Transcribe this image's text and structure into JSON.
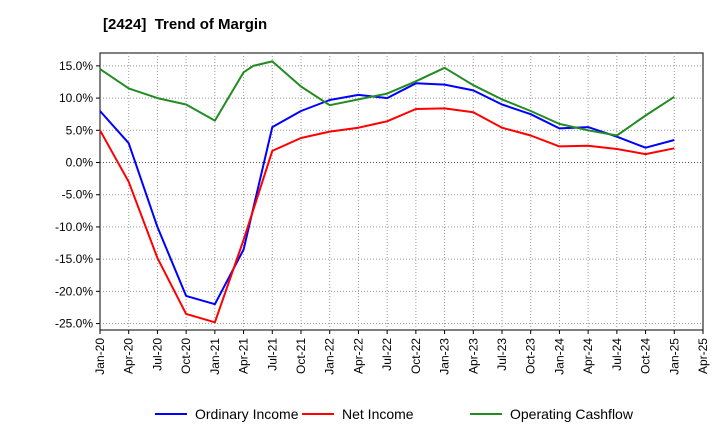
{
  "title": "[2424]  Trend of Margin",
  "chart_data": {
    "type": "line",
    "title": "[2424]  Trend of Margin",
    "xlabel": "",
    "ylabel": "",
    "ylim": [
      -26,
      17
    ],
    "y_ticks": [
      15,
      10,
      5,
      0,
      -5,
      -10,
      -15,
      -20,
      -25
    ],
    "y_tick_labels": [
      "15.0%",
      "10.0%",
      "5.0%",
      "0.0%",
      "-5.0%",
      "-10.0%",
      "-15.0%",
      "-20.0%",
      "-25.0%"
    ],
    "x_tick_labels": [
      "Jan-20",
      "Apr-20",
      "Jul-20",
      "Oct-20",
      "Jan-21",
      "Apr-21",
      "Jul-21",
      "Oct-21",
      "Jan-22",
      "Apr-22",
      "Jul-22",
      "Oct-22",
      "Jan-23",
      "Apr-23",
      "Jul-23",
      "Oct-23",
      "Jan-24",
      "Apr-24",
      "Jul-24",
      "Oct-24",
      "Jan-25",
      "Apr-25"
    ],
    "grid": true,
    "legend_position": "bottom",
    "series": [
      {
        "name": "Ordinary Income",
        "color": "#0000ff",
        "x": [
          "Jan-20",
          "Apr-20",
          "Jul-20",
          "Oct-20",
          "Jan-21",
          "Apr-21",
          "Jul-21",
          "Oct-21",
          "Jan-22",
          "Apr-22",
          "Jul-22",
          "Oct-22",
          "Jan-23",
          "Apr-23",
          "Jul-23",
          "Oct-23",
          "Jan-24",
          "Apr-24",
          "Jul-24",
          "Oct-24",
          "Jan-25"
        ],
        "values": [
          8.0,
          3.0,
          -10.0,
          -20.7,
          -22.0,
          -13.5,
          5.5,
          8.0,
          9.7,
          10.5,
          10.0,
          12.3,
          12.1,
          11.2,
          9.0,
          7.5,
          5.3,
          5.5,
          4.0,
          2.3,
          3.5
        ]
      },
      {
        "name": "Net Income",
        "color": "#ff0000",
        "x": [
          "Jan-20",
          "Apr-20",
          "Jul-20",
          "Oct-20",
          "Jan-21",
          "Apr-21",
          "Jul-21",
          "Oct-21",
          "Jan-22",
          "Apr-22",
          "Jul-22",
          "Oct-22",
          "Jan-23",
          "Apr-23",
          "Jul-23",
          "Oct-23",
          "Jan-24",
          "Apr-24",
          "Jul-24",
          "Oct-24",
          "Jan-25"
        ],
        "values": [
          5.0,
          -3.0,
          -14.8,
          -23.5,
          -24.8,
          -12.0,
          1.8,
          3.8,
          4.8,
          5.4,
          6.4,
          8.3,
          8.4,
          7.8,
          5.4,
          4.2,
          2.5,
          2.6,
          2.1,
          1.3,
          2.2
        ]
      },
      {
        "name": "Operating Cashflow",
        "color": "#228b22",
        "x": [
          "Jan-20",
          "Apr-20",
          "Jul-20",
          "Oct-20",
          "Jan-21",
          "Apr-21",
          "May-21",
          "Jul-21",
          "Oct-21",
          "Jan-22",
          "Apr-22",
          "Jul-22",
          "Oct-22",
          "Jan-23",
          "Apr-23",
          "Jul-23",
          "Oct-23",
          "Jan-24",
          "Apr-24",
          "Jul-24",
          "Oct-24",
          "Jan-25"
        ],
        "values": [
          14.5,
          11.5,
          10.0,
          9.0,
          6.5,
          14.0,
          15.0,
          15.7,
          11.8,
          8.9,
          9.8,
          10.7,
          12.6,
          14.7,
          12.0,
          9.8,
          8.0,
          6.0,
          5.0,
          4.2,
          7.3,
          10.2
        ]
      }
    ]
  }
}
